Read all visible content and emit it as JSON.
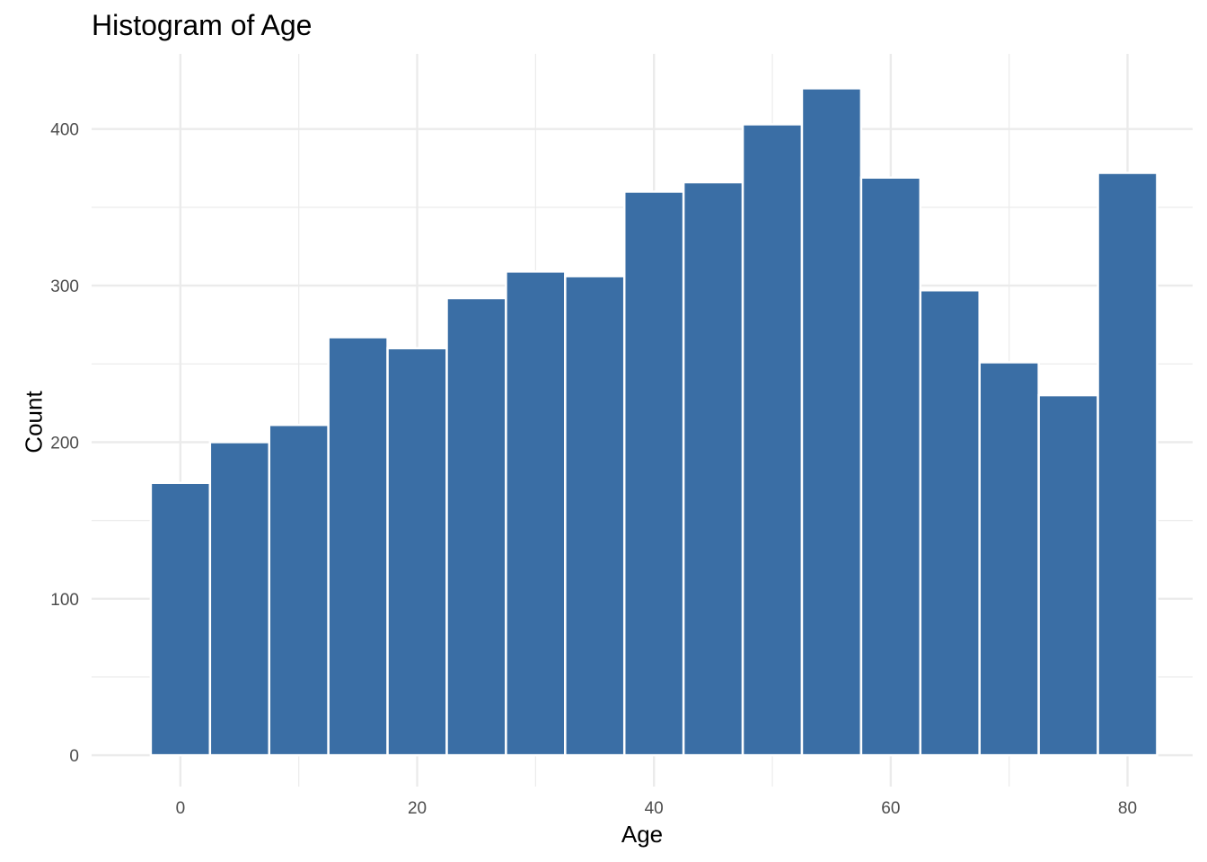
{
  "chart_data": {
    "type": "bar",
    "title": "Histogram of Age",
    "xlabel": "Age",
    "ylabel": "Count",
    "bin_width": 5,
    "bin_centers": [
      0,
      5,
      10,
      15,
      20,
      25,
      30,
      35,
      40,
      45,
      50,
      55,
      60,
      65,
      70,
      75,
      80
    ],
    "values": [
      174,
      200,
      211,
      267,
      260,
      292,
      309,
      306,
      360,
      366,
      403,
      426,
      369,
      297,
      251,
      230,
      372
    ],
    "xlim": [
      -7.5,
      85.5
    ],
    "ylim": [
      -20,
      448
    ],
    "x_ticks": [
      0,
      20,
      40,
      60,
      80
    ],
    "y_ticks": [
      0,
      100,
      200,
      300,
      400
    ],
    "grid": true,
    "colors": {
      "bar_fill": "#3a6ea5",
      "bar_edge": "#ffffff",
      "grid": "#ebebeb"
    }
  }
}
